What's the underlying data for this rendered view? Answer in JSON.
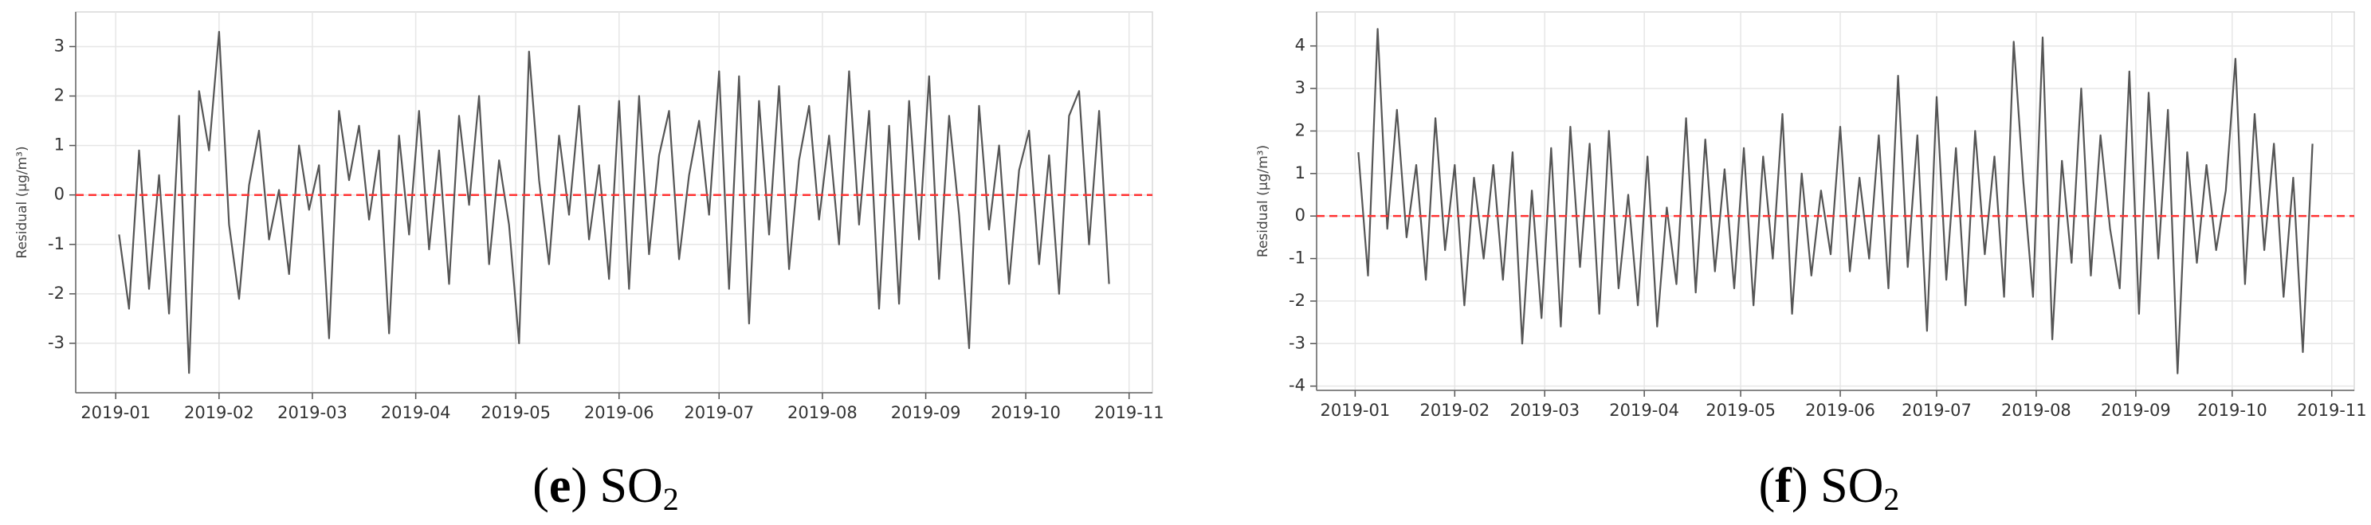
{
  "chart_data": [
    {
      "type": "line",
      "y_label": "Residual (μg/m³)",
      "caption": [
        "(",
        "e",
        ") SO",
        "2"
      ],
      "x": [
        "2019-01-02",
        "2019-01-05",
        "2019-01-08",
        "2019-01-11",
        "2019-01-14",
        "2019-01-17",
        "2019-01-20",
        "2019-01-23",
        "2019-01-26",
        "2019-01-29",
        "2019-02-01",
        "2019-02-04",
        "2019-02-07",
        "2019-02-10",
        "2019-02-13",
        "2019-02-16",
        "2019-02-19",
        "2019-02-22",
        "2019-02-25",
        "2019-02-28",
        "2019-03-03",
        "2019-03-06",
        "2019-03-09",
        "2019-03-12",
        "2019-03-15",
        "2019-03-18",
        "2019-03-21",
        "2019-03-24",
        "2019-03-27",
        "2019-03-30",
        "2019-04-02",
        "2019-04-05",
        "2019-04-08",
        "2019-04-11",
        "2019-04-14",
        "2019-04-17",
        "2019-04-20",
        "2019-04-23",
        "2019-04-26",
        "2019-04-29",
        "2019-05-02",
        "2019-05-05",
        "2019-05-08",
        "2019-05-11",
        "2019-05-14",
        "2019-05-17",
        "2019-05-20",
        "2019-05-23",
        "2019-05-26",
        "2019-05-29",
        "2019-06-01",
        "2019-06-04",
        "2019-06-07",
        "2019-06-10",
        "2019-06-13",
        "2019-06-16",
        "2019-06-19",
        "2019-06-22",
        "2019-06-25",
        "2019-06-28",
        "2019-07-01",
        "2019-07-04",
        "2019-07-07",
        "2019-07-10",
        "2019-07-13",
        "2019-07-16",
        "2019-07-19",
        "2019-07-22",
        "2019-07-25",
        "2019-07-28",
        "2019-07-31",
        "2019-08-03",
        "2019-08-06",
        "2019-08-09",
        "2019-08-12",
        "2019-08-15",
        "2019-08-18",
        "2019-08-21",
        "2019-08-24",
        "2019-08-27",
        "2019-08-30",
        "2019-09-02",
        "2019-09-05",
        "2019-09-08",
        "2019-09-11",
        "2019-09-14",
        "2019-09-17",
        "2019-09-20",
        "2019-09-23",
        "2019-09-26",
        "2019-09-29",
        "2019-10-02",
        "2019-10-05",
        "2019-10-08",
        "2019-10-11",
        "2019-10-14",
        "2019-10-17",
        "2019-10-20",
        "2019-10-23",
        "2019-10-26"
      ],
      "series": [
        {
          "color": "#555555",
          "values": [
            -0.8,
            -2.3,
            0.9,
            -1.9,
            0.4,
            -2.4,
            1.6,
            -3.6,
            2.1,
            0.9,
            3.3,
            -0.6,
            -2.1,
            0.2,
            1.3,
            -0.9,
            0.1,
            -1.6,
            1.0,
            -0.3,
            0.6,
            -2.9,
            1.7,
            0.3,
            1.4,
            -0.5,
            0.9,
            -2.8,
            1.2,
            -0.8,
            1.7,
            -1.1,
            0.9,
            -1.8,
            1.6,
            -0.2,
            2.0,
            -1.4,
            0.7,
            -0.6,
            -3.0,
            2.9,
            0.3,
            -1.4,
            1.2,
            -0.4,
            1.8,
            -0.9,
            0.6,
            -1.7,
            1.9,
            -1.9,
            2.0,
            -1.2,
            0.8,
            1.7,
            -1.3,
            0.4,
            1.5,
            -0.4,
            2.5,
            -1.9,
            2.4,
            -2.6,
            1.9,
            -0.8,
            2.2,
            -1.5,
            0.7,
            1.8,
            -0.5,
            1.2,
            -1.0,
            2.5,
            -0.6,
            1.7,
            -2.3,
            1.4,
            -2.2,
            1.9,
            -0.9,
            2.4,
            -1.7,
            1.6,
            -0.4,
            -3.1,
            1.8,
            -0.7,
            1.0,
            -1.8,
            0.5,
            1.3,
            -1.4,
            0.8,
            -2.0,
            1.6,
            2.1,
            -1.0,
            1.7,
            -1.8
          ]
        }
      ],
      "reference_line": {
        "value": 0,
        "color": "#ff3333"
      },
      "xlim": [
        "2018-12-20",
        "2019-11-08"
      ],
      "xticks": [
        {
          "value": "2019-01-01",
          "label": "2019-01"
        },
        {
          "value": "2019-02-01",
          "label": "2019-02"
        },
        {
          "value": "2019-03-01",
          "label": "2019-03"
        },
        {
          "value": "2019-04-01",
          "label": "2019-04"
        },
        {
          "value": "2019-05-01",
          "label": "2019-05"
        },
        {
          "value": "2019-06-01",
          "label": "2019-06"
        },
        {
          "value": "2019-07-01",
          "label": "2019-07"
        },
        {
          "value": "2019-08-01",
          "label": "2019-08"
        },
        {
          "value": "2019-09-01",
          "label": "2019-09"
        },
        {
          "value": "2019-10-01",
          "label": "2019-10"
        },
        {
          "value": "2019-11-01",
          "label": "2019-11"
        }
      ],
      "ylim": [
        -4,
        3.7
      ],
      "yticks": [
        -3,
        -2,
        -1,
        0,
        1,
        2,
        3
      ],
      "grid": true
    },
    {
      "type": "line",
      "y_label": "Residual (μg/m³)",
      "caption": [
        "(",
        "f",
        ") SO",
        "2"
      ],
      "x": [
        "2019-01-02",
        "2019-01-05",
        "2019-01-08",
        "2019-01-11",
        "2019-01-14",
        "2019-01-17",
        "2019-01-20",
        "2019-01-23",
        "2019-01-26",
        "2019-01-29",
        "2019-02-01",
        "2019-02-04",
        "2019-02-07",
        "2019-02-10",
        "2019-02-13",
        "2019-02-16",
        "2019-02-19",
        "2019-02-22",
        "2019-02-25",
        "2019-02-28",
        "2019-03-03",
        "2019-03-06",
        "2019-03-09",
        "2019-03-12",
        "2019-03-15",
        "2019-03-18",
        "2019-03-21",
        "2019-03-24",
        "2019-03-27",
        "2019-03-30",
        "2019-04-02",
        "2019-04-05",
        "2019-04-08",
        "2019-04-11",
        "2019-04-14",
        "2019-04-17",
        "2019-04-20",
        "2019-04-23",
        "2019-04-26",
        "2019-04-29",
        "2019-05-02",
        "2019-05-05",
        "2019-05-08",
        "2019-05-11",
        "2019-05-14",
        "2019-05-17",
        "2019-05-20",
        "2019-05-23",
        "2019-05-26",
        "2019-05-29",
        "2019-06-01",
        "2019-06-04",
        "2019-06-07",
        "2019-06-10",
        "2019-06-13",
        "2019-06-16",
        "2019-06-19",
        "2019-06-22",
        "2019-06-25",
        "2019-06-28",
        "2019-07-01",
        "2019-07-04",
        "2019-07-07",
        "2019-07-10",
        "2019-07-13",
        "2019-07-16",
        "2019-07-19",
        "2019-07-22",
        "2019-07-25",
        "2019-07-28",
        "2019-07-31",
        "2019-08-03",
        "2019-08-06",
        "2019-08-09",
        "2019-08-12",
        "2019-08-15",
        "2019-08-18",
        "2019-08-21",
        "2019-08-24",
        "2019-08-27",
        "2019-08-30",
        "2019-09-02",
        "2019-09-05",
        "2019-09-08",
        "2019-09-11",
        "2019-09-14",
        "2019-09-17",
        "2019-09-20",
        "2019-09-23",
        "2019-09-26",
        "2019-09-29",
        "2019-10-02",
        "2019-10-05",
        "2019-10-08",
        "2019-10-11",
        "2019-10-14",
        "2019-10-17",
        "2019-10-20",
        "2019-10-23",
        "2019-10-26"
      ],
      "series": [
        {
          "color": "#555555",
          "values": [
            1.5,
            -1.4,
            4.4,
            -0.3,
            2.5,
            -0.5,
            1.2,
            -1.5,
            2.3,
            -0.8,
            1.2,
            -2.1,
            0.9,
            -1.0,
            1.2,
            -1.5,
            1.5,
            -3.0,
            0.6,
            -2.4,
            1.6,
            -2.6,
            2.1,
            -1.2,
            1.7,
            -2.3,
            2.0,
            -1.7,
            0.5,
            -2.1,
            1.4,
            -2.6,
            0.2,
            -1.6,
            2.3,
            -1.8,
            1.8,
            -1.3,
            1.1,
            -1.7,
            1.6,
            -2.1,
            1.4,
            -1.0,
            2.4,
            -2.3,
            1.0,
            -1.4,
            0.6,
            -0.9,
            2.1,
            -1.3,
            0.9,
            -1.0,
            1.9,
            -1.7,
            3.3,
            -1.2,
            1.9,
            -2.7,
            2.8,
            -1.5,
            1.6,
            -2.1,
            2.0,
            -0.9,
            1.4,
            -1.9,
            4.1,
            0.8,
            -1.9,
            4.2,
            -2.9,
            1.3,
            -1.1,
            3.0,
            -1.4,
            1.9,
            -0.3,
            -1.7,
            3.4,
            -2.3,
            2.9,
            -1.0,
            2.5,
            -3.7,
            1.5,
            -1.1,
            1.2,
            -0.8,
            0.6,
            3.7,
            -1.6,
            2.4,
            -0.8,
            1.7,
            -1.9,
            0.9,
            -3.2,
            1.7
          ]
        }
      ],
      "reference_line": {
        "value": 0,
        "color": "#ff3333"
      },
      "xlim": [
        "2018-12-20",
        "2019-11-08"
      ],
      "xticks": [
        {
          "value": "2019-01-01",
          "label": "2019-01"
        },
        {
          "value": "2019-02-01",
          "label": "2019-02"
        },
        {
          "value": "2019-03-01",
          "label": "2019-03"
        },
        {
          "value": "2019-04-01",
          "label": "2019-04"
        },
        {
          "value": "2019-05-01",
          "label": "2019-05"
        },
        {
          "value": "2019-06-01",
          "label": "2019-06"
        },
        {
          "value": "2019-07-01",
          "label": "2019-07"
        },
        {
          "value": "2019-08-01",
          "label": "2019-08"
        },
        {
          "value": "2019-09-01",
          "label": "2019-09"
        },
        {
          "value": "2019-10-01",
          "label": "2019-10"
        },
        {
          "value": "2019-11-01",
          "label": "2019-11"
        }
      ],
      "ylim": [
        -4.1,
        4.8
      ],
      "yticks": [
        -4,
        -3,
        -2,
        -1,
        0,
        1,
        2,
        3,
        4
      ],
      "grid": true
    }
  ]
}
